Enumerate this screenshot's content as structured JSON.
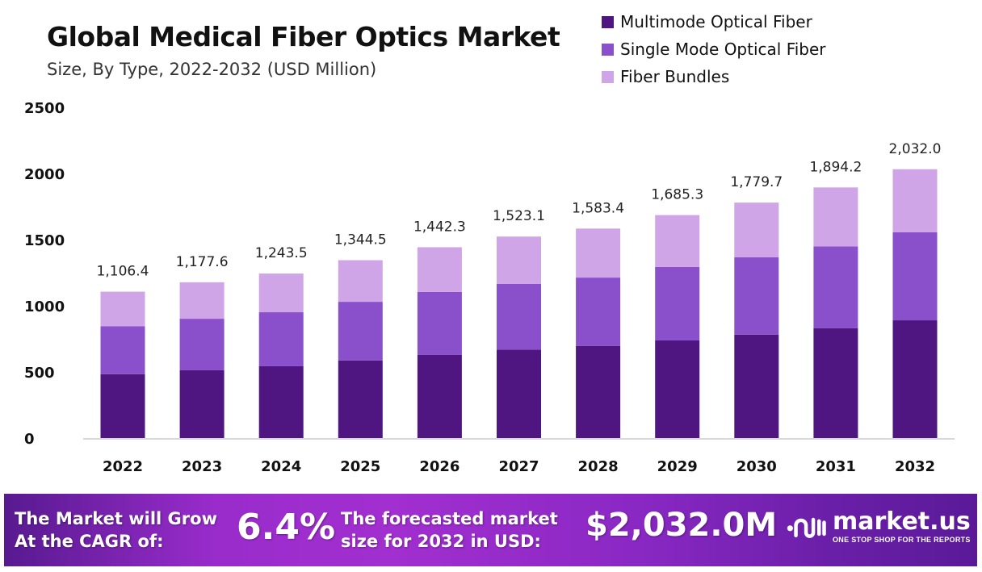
{
  "chart_data": {
    "type": "bar",
    "stacked": true,
    "title": "Global Medical Fiber Optics Market",
    "subtitle": "Size, By Type, 2022-2032 (USD Million)",
    "categories": [
      "2022",
      "2023",
      "2024",
      "2025",
      "2026",
      "2027",
      "2028",
      "2029",
      "2030",
      "2031",
      "2032"
    ],
    "series": [
      {
        "name": "Multimode Optical Fiber",
        "color": "#4f1581",
        "values": [
          483,
          514,
          543,
          587,
          630,
          669,
          697,
          738,
          782,
          831,
          890
        ]
      },
      {
        "name": "Single Mode Optical Fiber",
        "color": "#8a4fcb",
        "values": [
          363,
          388,
          408,
          443,
          474,
          497,
          516,
          555,
          584,
          618,
          665
        ]
      },
      {
        "name": "Fiber Bundles",
        "color": "#d0a5e8",
        "values": [
          260.4,
          275.6,
          292.5,
          314.5,
          338.3,
          357.1,
          370.4,
          392.3,
          413.7,
          445.2,
          477.0
        ]
      }
    ],
    "totals": [
      "1,106.4",
      "1,177.6",
      "1,243.5",
      "1,344.5",
      "1,442.3",
      "1,523.1",
      "1,583.4",
      "1,685.3",
      "1,779.7",
      "1,894.2",
      "2,032.0"
    ],
    "ylim": [
      0,
      2500
    ],
    "yticks": [
      "0",
      "500",
      "1000",
      "1500",
      "2000",
      "2500"
    ],
    "grid": false,
    "legend": "top-right"
  },
  "footer": {
    "cagr_text_1": "The Market will Grow",
    "cagr_text_2": "At the CAGR of:",
    "cagr_value": "6.4%",
    "forecast_text_1": "The forecasted market",
    "forecast_text_2": "size for 2032 in USD:",
    "forecast_value": "$2,032.0M",
    "logo_name": "market.us",
    "logo_tagline": "ONE STOP SHOP FOR THE REPORTS"
  }
}
